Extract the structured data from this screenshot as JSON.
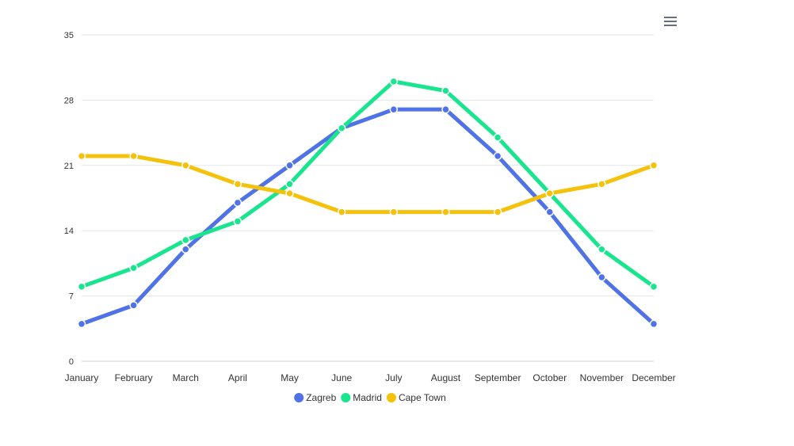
{
  "chart_data": {
    "type": "line",
    "categories": [
      "January",
      "February",
      "March",
      "April",
      "May",
      "June",
      "July",
      "August",
      "September",
      "October",
      "November",
      "December"
    ],
    "ylim": [
      0,
      35
    ],
    "yticks": [
      0,
      7,
      14,
      21,
      28,
      35
    ],
    "grid": true,
    "legend_position": "bottom-center",
    "series": [
      {
        "name": "Zagreb",
        "color": "#4f73e6",
        "values": [
          4,
          6,
          12,
          17,
          21,
          25,
          27,
          27,
          22,
          16,
          9,
          4
        ]
      },
      {
        "name": "Madrid",
        "color": "#19e58f",
        "values": [
          8,
          10,
          13,
          15,
          19,
          25,
          30,
          29,
          24,
          18,
          12,
          8
        ]
      },
      {
        "name": "Cape Town",
        "color": "#f5c20b",
        "values": [
          22,
          22,
          21,
          19,
          18,
          16,
          16,
          16,
          16,
          18,
          19,
          21
        ]
      }
    ]
  },
  "toolbar": {
    "menu_icon": "hamburger-menu-icon"
  }
}
